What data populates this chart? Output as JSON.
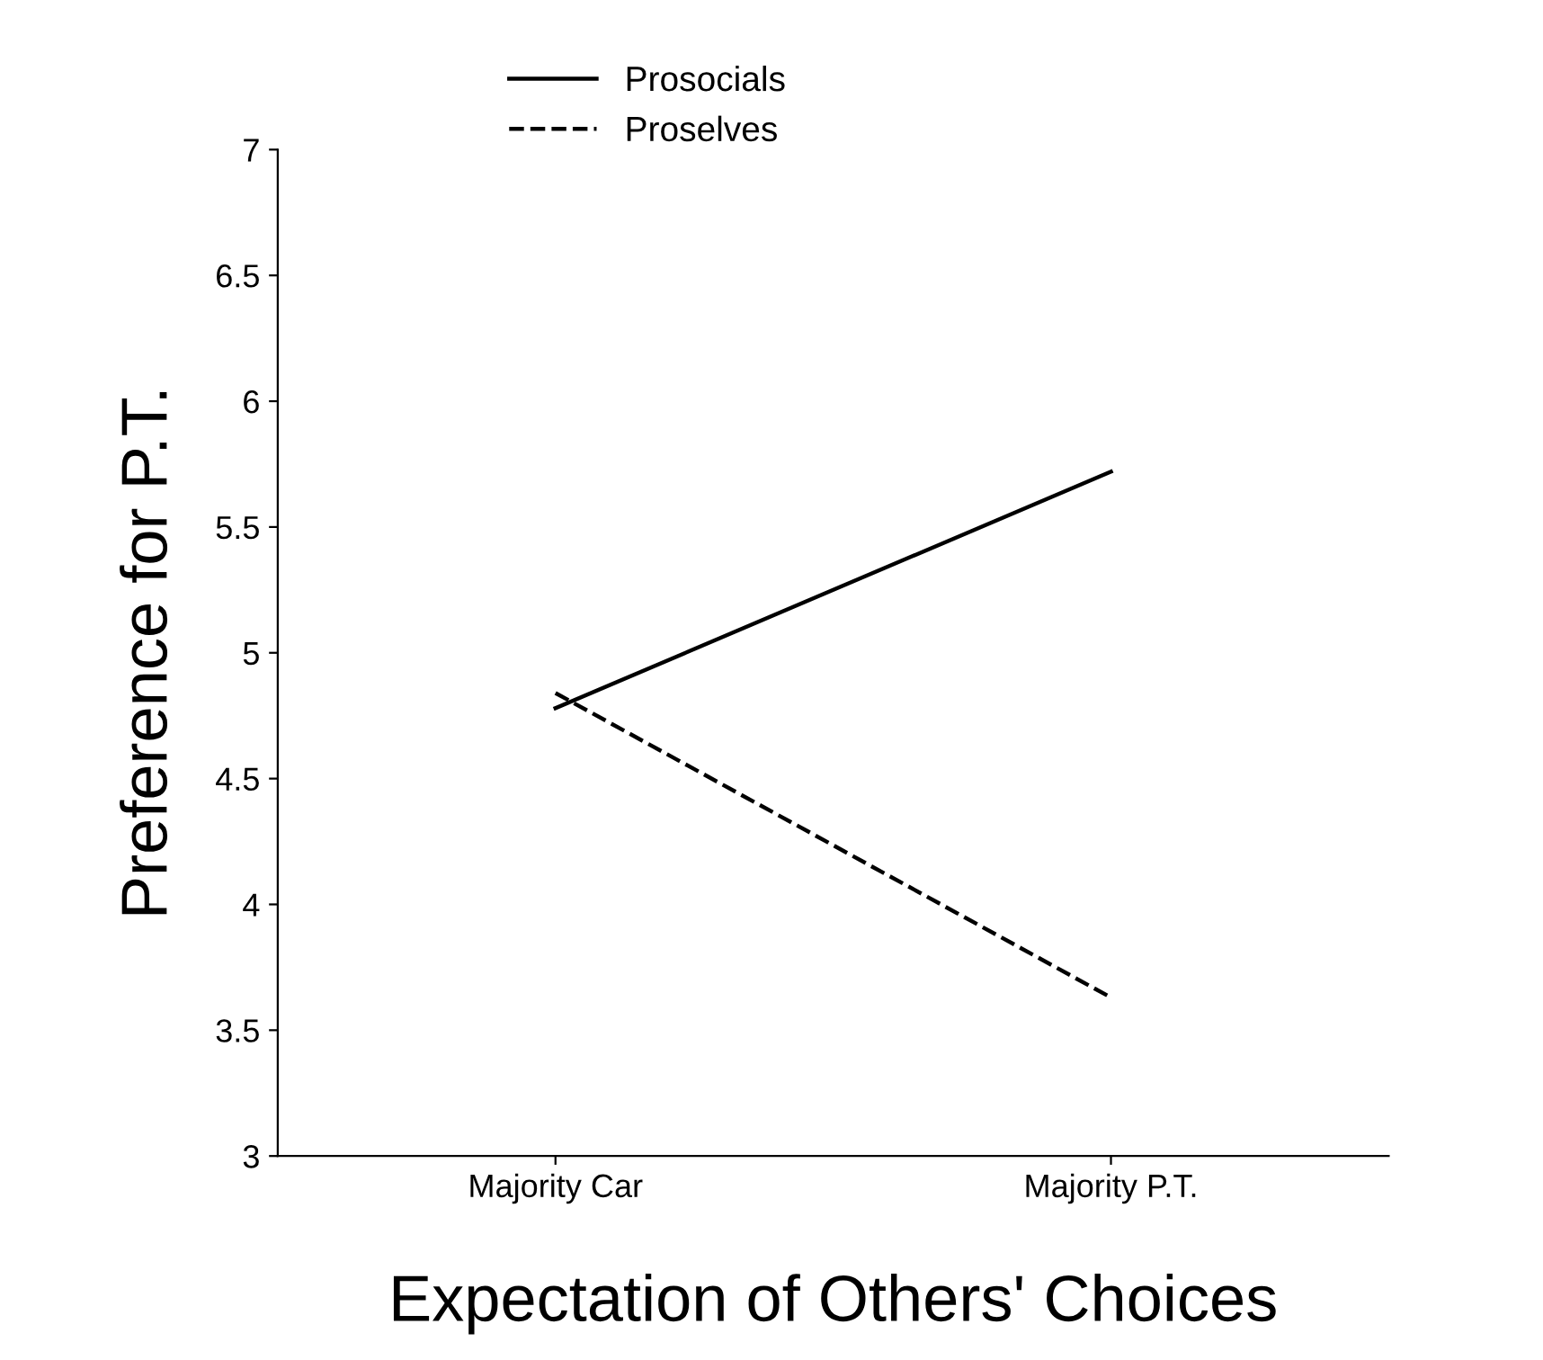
{
  "chart_data": {
    "type": "line",
    "xlabel": "Expectation of Others' Choices",
    "ylabel": "Preference for P.T.",
    "categories": [
      "Majority Car",
      "Majority P.T."
    ],
    "series": [
      {
        "name": "Prosocials",
        "color": "#000000",
        "values": [
          4.78,
          5.72
        ],
        "line_style": "solid"
      },
      {
        "name": "Proselves",
        "color": "#000000",
        "values": [
          4.84,
          3.63
        ],
        "line_style": "dashed"
      }
    ],
    "ylim": [
      3,
      7
    ],
    "yticks": [
      3,
      3.5,
      4,
      4.5,
      5,
      5.5,
      6,
      6.5,
      7
    ],
    "grid": false,
    "legend": "top",
    "marker": "none"
  }
}
